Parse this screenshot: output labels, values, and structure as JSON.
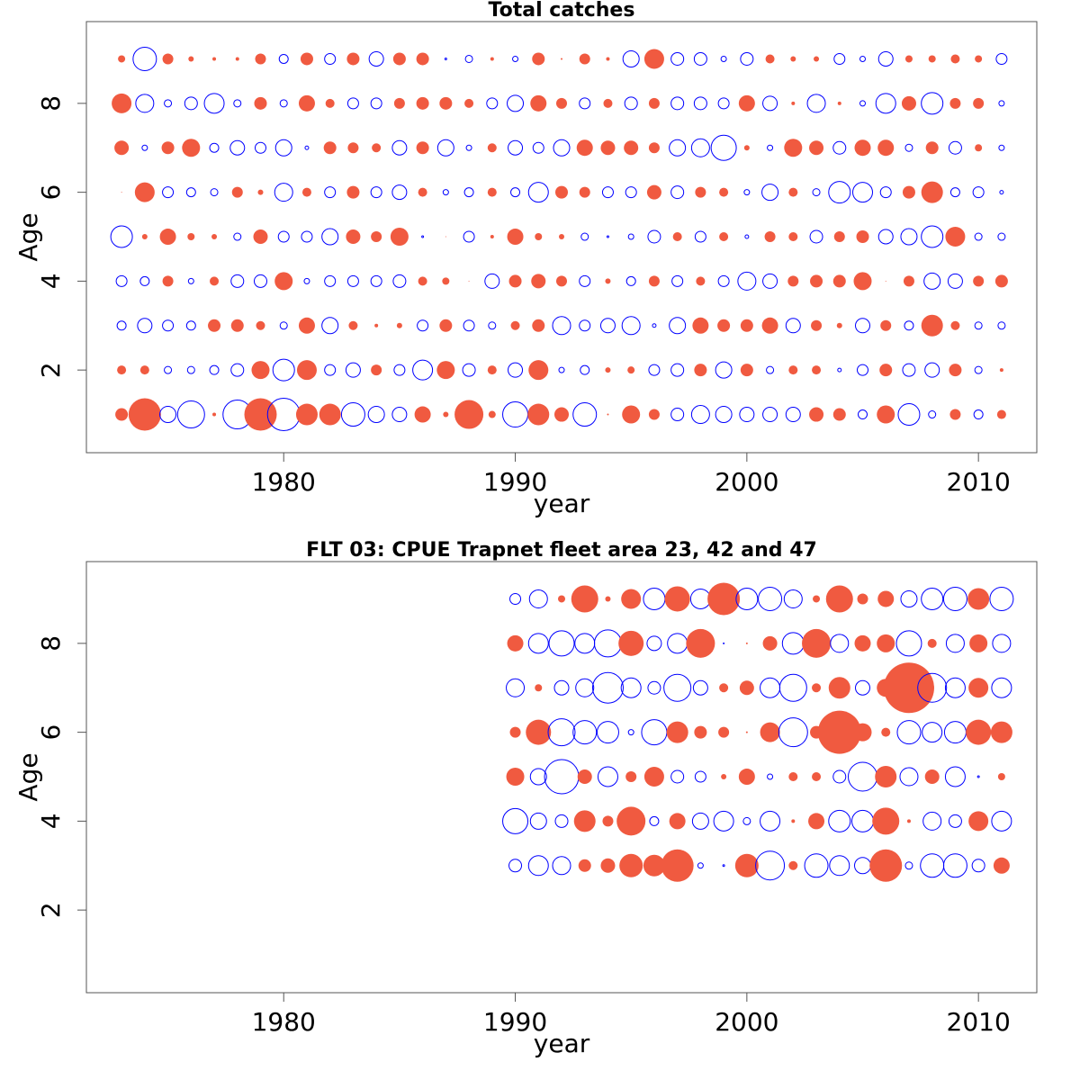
{
  "chart_data": [
    {
      "type": "bubble",
      "title": "Total catches",
      "xlabel": "year",
      "ylabel": "Age",
      "x": [
        1973,
        1974,
        1975,
        1976,
        1977,
        1978,
        1979,
        1980,
        1981,
        1982,
        1983,
        1984,
        1985,
        1986,
        1987,
        1988,
        1989,
        1990,
        1991,
        1992,
        1993,
        1994,
        1995,
        1996,
        1997,
        1998,
        1999,
        2000,
        2001,
        2002,
        2003,
        2004,
        2005,
        2006,
        2007,
        2008,
        2009,
        2010,
        2011
      ],
      "ages": [
        1,
        2,
        3,
        4,
        5,
        6,
        7,
        8,
        9
      ],
      "values": [
        [
          0.7,
          1.8,
          -0.9,
          -1.5,
          0.2,
          -1.6,
          1.8,
          -1.8,
          1.2,
          1.2,
          -1.3,
          -0.9,
          -0.8,
          0.9,
          0.3,
          1.6,
          0.4,
          -1.4,
          1.2,
          0.8,
          -1.3,
          0.1,
          1.0,
          0.6,
          -0.7,
          -1.0,
          -0.9,
          -0.8,
          -0.8,
          -0.8,
          0.8,
          0.7,
          -0.5,
          1.0,
          -1.2,
          -0.4,
          0.6,
          -0.5,
          0.5
        ],
        [
          0.5,
          0.5,
          -0.4,
          -0.4,
          -0.5,
          -0.7,
          1.0,
          -1.2,
          1.1,
          -0.6,
          -0.8,
          0.6,
          -0.6,
          -1.1,
          1.0,
          -0.7,
          0.5,
          -0.8,
          1.1,
          -0.3,
          -0.5,
          0.3,
          0.4,
          -0.6,
          -0.7,
          0.7,
          -0.9,
          0.7,
          -0.4,
          0.5,
          0.5,
          -0.2,
          -0.6,
          0.7,
          -0.7,
          -0.8,
          0.7,
          -0.4,
          0.2
        ],
        [
          -0.5,
          -0.8,
          -0.6,
          -0.5,
          0.7,
          0.7,
          0.5,
          -0.4,
          0.9,
          -0.9,
          0.5,
          0.2,
          0.3,
          -0.6,
          0.7,
          -0.6,
          -0.4,
          0.5,
          0.7,
          -1.0,
          -0.6,
          -0.8,
          -1.0,
          -0.2,
          -0.9,
          0.9,
          0.7,
          0.7,
          0.9,
          -0.8,
          0.6,
          0.3,
          -0.8,
          0.6,
          -0.5,
          1.2,
          0.5,
          -0.4,
          -0.4
        ],
        [
          -0.6,
          -0.5,
          0.6,
          -0.3,
          0.5,
          -0.7,
          -0.7,
          1.0,
          -0.3,
          -0.6,
          -0.6,
          -0.6,
          -0.7,
          0.5,
          0.4,
          0.05,
          -0.8,
          0.7,
          0.8,
          0.6,
          -0.6,
          0.3,
          -0.5,
          0.6,
          -0.6,
          0.5,
          -0.6,
          -1.0,
          -0.8,
          0.6,
          0.7,
          0.7,
          1.0,
          0.05,
          0.6,
          -0.9,
          -0.8,
          0.6,
          0.7
        ],
        [
          -1.2,
          0.3,
          0.9,
          0.4,
          0.3,
          -0.4,
          0.8,
          -0.6,
          -0.6,
          -0.9,
          0.8,
          0.6,
          1.0,
          -0.1,
          0.05,
          -0.6,
          0.2,
          0.9,
          0.4,
          0.3,
          -0.4,
          -0.1,
          -0.3,
          -0.7,
          0.5,
          -0.6,
          0.5,
          -0.2,
          0.6,
          0.5,
          -0.7,
          0.6,
          0.7,
          -0.8,
          -0.9,
          -1.2,
          1.1,
          -0.4,
          -0.4
        ],
        [
          0.05,
          1.1,
          -0.6,
          -0.5,
          -0.4,
          0.6,
          0.3,
          -1.0,
          0.5,
          -0.6,
          0.7,
          -0.6,
          -0.8,
          0.5,
          -0.3,
          -0.5,
          0.5,
          -0.5,
          -1.1,
          0.7,
          0.6,
          -0.6,
          -0.6,
          0.8,
          -0.7,
          0.6,
          0.5,
          -0.3,
          -0.9,
          0.5,
          -0.4,
          -1.2,
          -1.1,
          -0.6,
          0.7,
          1.2,
          -0.5,
          -0.6,
          -0.2
        ],
        [
          0.8,
          -0.3,
          0.7,
          1.0,
          -0.5,
          -0.8,
          -0.6,
          -0.9,
          -0.2,
          0.7,
          0.6,
          0.5,
          -0.8,
          0.7,
          -0.9,
          -0.3,
          0.5,
          -0.8,
          -0.6,
          -0.9,
          0.9,
          0.8,
          0.8,
          0.6,
          -0.9,
          -1.0,
          -1.4,
          0.3,
          -0.3,
          1.0,
          0.8,
          -0.7,
          0.9,
          0.9,
          -0.4,
          0.7,
          -0.7,
          0.4,
          -0.3
        ],
        [
          1.1,
          -1.0,
          -0.4,
          -0.7,
          -1.1,
          -0.4,
          0.7,
          -0.4,
          0.9,
          0.5,
          -0.6,
          -0.6,
          0.6,
          0.7,
          0.7,
          0.5,
          -0.6,
          -0.9,
          0.9,
          0.6,
          -0.6,
          0.5,
          -0.7,
          0.6,
          -0.7,
          -0.7,
          -0.6,
          0.9,
          -0.8,
          0.2,
          -1.0,
          0.2,
          -0.3,
          -1.1,
          0.8,
          -1.2,
          0.6,
          0.6,
          -0.3
        ],
        [
          0.4,
          -1.3,
          0.6,
          0.3,
          0.2,
          0.2,
          0.6,
          -0.5,
          0.7,
          -0.6,
          0.7,
          -0.8,
          0.7,
          0.7,
          -0.1,
          -0.4,
          0.2,
          -0.3,
          0.7,
          0.1,
          0.6,
          0.2,
          -0.9,
          1.1,
          -0.7,
          -0.7,
          -0.3,
          -0.7,
          0.5,
          0.3,
          0.3,
          -0.6,
          -0.3,
          -0.8,
          0.4,
          0.4,
          0.5,
          0.4,
          -0.6
        ]
      ],
      "xlim": [
        1971.48,
        2012.52
      ],
      "ylim": [
        0.14,
        9.84
      ],
      "xticks": [
        1980,
        1990,
        2000,
        2010
      ],
      "yticks": [
        2,
        4,
        6,
        8
      ],
      "pos_color": "#f05a40",
      "neg_color": "#0000ff"
    },
    {
      "type": "bubble",
      "title": "FLT 03: CPUE Trapnet fleet area 23, 42 and 47",
      "xlabel": "year",
      "ylabel": "Age",
      "x": [
        1990,
        1991,
        1992,
        1993,
        1994,
        1995,
        1996,
        1997,
        1998,
        1999,
        2000,
        2001,
        2002,
        2003,
        2004,
        2005,
        2006,
        2007,
        2008,
        2009,
        2010,
        2011
      ],
      "ages": [
        3,
        4,
        5,
        6,
        7,
        8,
        9
      ],
      "values": [
        [
          -0.7,
          -1.1,
          -1.0,
          0.7,
          0.8,
          1.3,
          1.2,
          1.8,
          -0.3,
          -0.1,
          1.3,
          -1.6,
          0.5,
          -1.3,
          -1.1,
          -0.9,
          1.8,
          -0.4,
          -1.3,
          -1.3,
          -0.7,
          0.9
        ],
        [
          -1.4,
          -0.9,
          -0.7,
          1.2,
          0.6,
          1.6,
          -0.5,
          0.9,
          -0.9,
          -1.1,
          -0.4,
          -1.1,
          0.2,
          0.9,
          -1.2,
          -1.2,
          1.5,
          0.2,
          -1.0,
          -0.7,
          1.1,
          -1.1
        ],
        [
          1.0,
          -0.9,
          -1.9,
          0.8,
          -1.1,
          0.6,
          1.1,
          -0.7,
          -0.6,
          0.3,
          0.9,
          -0.3,
          0.5,
          0.5,
          -0.7,
          -1.6,
          1.2,
          -1.0,
          0.8,
          -1.1,
          -0.1,
          0.4
        ],
        [
          0.6,
          1.4,
          -1.5,
          -1.3,
          -1.2,
          -0.3,
          -1.4,
          1.2,
          0.7,
          0.6,
          0.1,
          1.1,
          -1.6,
          0.7,
          2.4,
          1.0,
          0.5,
          -1.3,
          -1.1,
          -1.2,
          1.4,
          1.2
        ],
        [
          -1.0,
          0.4,
          -0.8,
          -1.0,
          -1.7,
          -1.1,
          -0.7,
          -1.5,
          -0.8,
          0.5,
          0.8,
          -1.1,
          -1.5,
          0.5,
          1.2,
          -0.8,
          1.0,
          2.8,
          -1.6,
          -1.1,
          1.1,
          -1.1
        ],
        [
          0.9,
          -1.1,
          -1.4,
          -1.1,
          -1.5,
          1.4,
          -0.8,
          -1.1,
          1.6,
          -0.05,
          0.1,
          0.8,
          -1.2,
          1.6,
          -1.0,
          0.9,
          1.0,
          -1.4,
          0.5,
          -1.0,
          1.0,
          -1.0
        ],
        [
          -0.6,
          -1.0,
          0.4,
          1.5,
          0.3,
          1.1,
          -1.2,
          1.4,
          -1.1,
          1.8,
          -1.2,
          -1.3,
          -1.0,
          0.4,
          1.5,
          0.6,
          0.9,
          -0.9,
          -1.2,
          -1.3,
          1.2,
          -1.3
        ]
      ],
      "xlim": [
        1971.48,
        2012.52
      ],
      "ylim": [
        0.14,
        9.84
      ],
      "xticks": [
        1980,
        1990,
        2000,
        2010
      ],
      "yticks": [
        2,
        4,
        6,
        8
      ],
      "pos_color": "#f05a40",
      "neg_color": "#0000ff"
    }
  ]
}
